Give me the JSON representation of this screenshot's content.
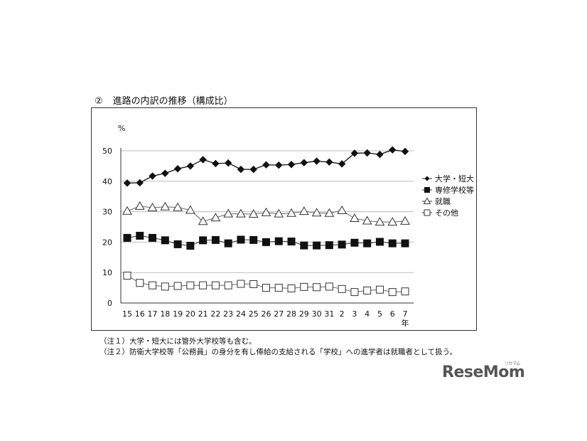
{
  "heading": {
    "number": "②",
    "title": "進路の内訳の推移（構成比）"
  },
  "chart_data": {
    "type": "line",
    "ylabel": "%",
    "ylim": [
      0,
      50
    ],
    "yticks": [
      0,
      10,
      20,
      30,
      40,
      50
    ],
    "grid": true,
    "legend_position": "right",
    "x_unit_label": "年",
    "categories": [
      "15",
      "16",
      "17",
      "18",
      "19",
      "20",
      "21",
      "22",
      "23",
      "24",
      "25",
      "26",
      "27",
      "28",
      "29",
      "30",
      "31",
      "2",
      "3",
      "4",
      "5",
      "6",
      "7"
    ],
    "series": [
      {
        "name": "大学・短大",
        "marker": "filled-diamond",
        "values": [
          39.4,
          39.5,
          41.7,
          42.6,
          44.1,
          45.0,
          47.1,
          45.8,
          46.0,
          43.9,
          43.9,
          45.4,
          45.3,
          45.5,
          46.1,
          46.6,
          46.3,
          45.7,
          49.2,
          49.3,
          48.8,
          50.3,
          49.8
        ]
      },
      {
        "name": "専修学校等",
        "marker": "filled-square",
        "values": [
          21.4,
          22.1,
          21.4,
          20.6,
          19.3,
          18.8,
          20.6,
          20.7,
          19.6,
          20.8,
          20.7,
          20.0,
          20.3,
          20.2,
          18.9,
          18.9,
          19.0,
          19.2,
          19.8,
          19.6,
          20.1,
          19.6,
          19.6
        ]
      },
      {
        "name": "就職",
        "marker": "open-triangle",
        "values": [
          30.2,
          31.8,
          31.3,
          31.6,
          31.4,
          30.5,
          26.8,
          28.0,
          29.3,
          29.3,
          29.2,
          29.7,
          29.3,
          29.5,
          30.1,
          29.6,
          29.5,
          30.4,
          27.8,
          27.0,
          26.6,
          26.6,
          26.9
        ]
      },
      {
        "name": "その他",
        "marker": "open-square",
        "values": [
          9.0,
          6.6,
          5.8,
          5.4,
          5.6,
          5.8,
          5.8,
          5.8,
          5.8,
          6.3,
          6.2,
          5.0,
          5.0,
          4.8,
          5.3,
          5.2,
          5.4,
          4.6,
          3.6,
          4.1,
          4.4,
          3.6,
          3.8
        ]
      }
    ]
  },
  "notes": [
    "（注１）大学・短大には管外大学校等も含む。",
    "（注２）防衛大学校等「公務員」の身分を有し俸給の支給される「学校」への進学者は就職者として扱う。"
  ],
  "logo": {
    "text": "ReseMom",
    "small": "リセマム"
  }
}
